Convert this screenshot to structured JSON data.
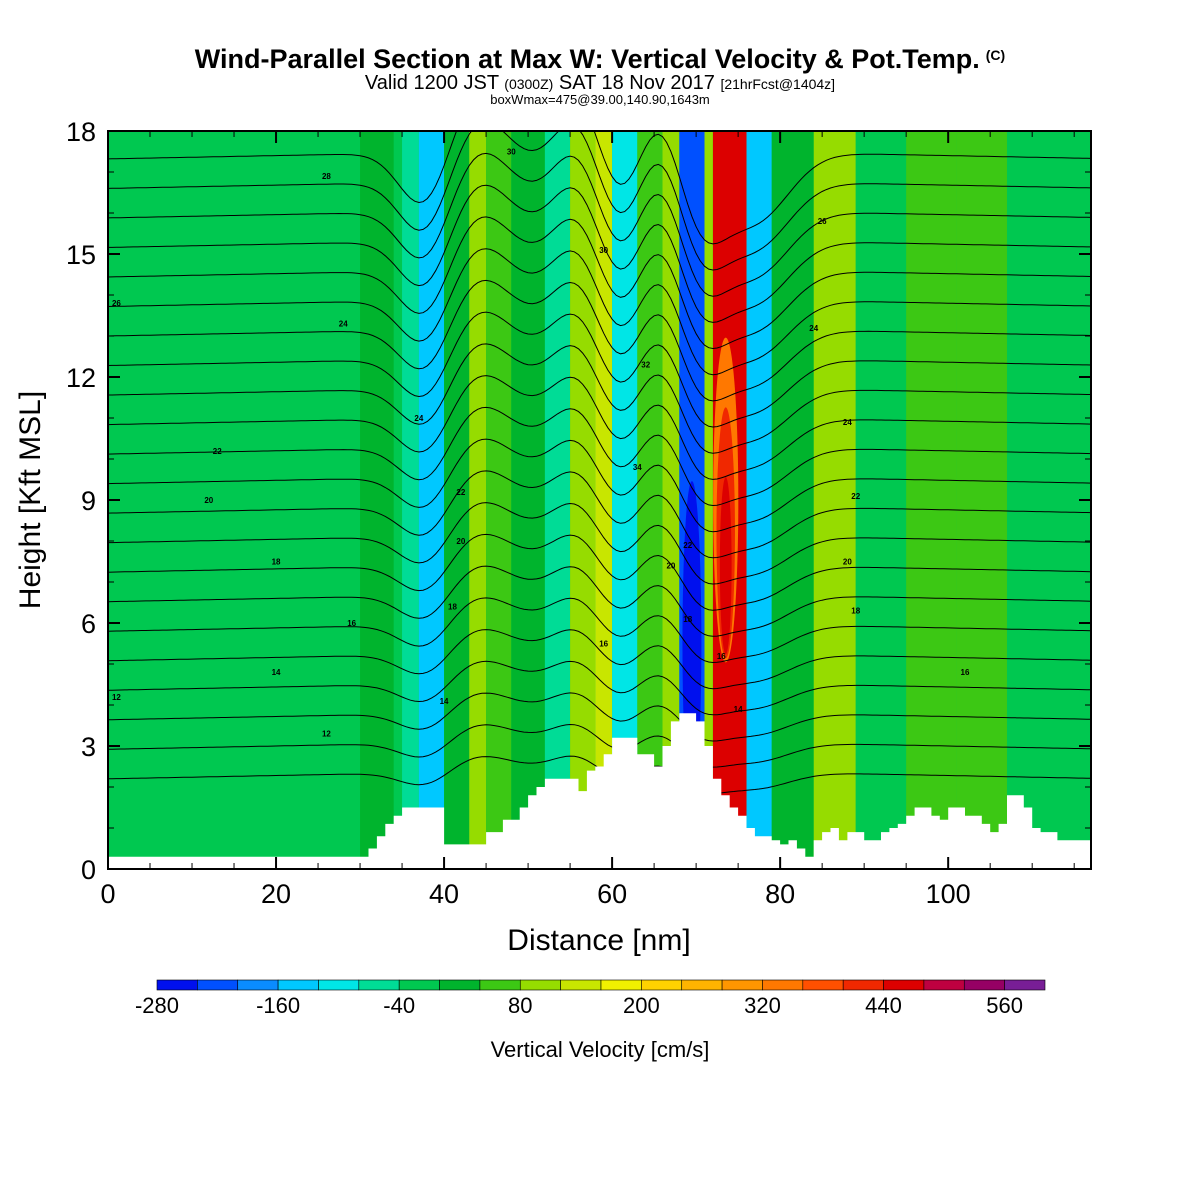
{
  "header": {
    "title": "Wind-Parallel Section at Max W: Vertical Velocity & Pot.Temp.",
    "title_tag": "(C)",
    "valid_prefix": "Valid 1200 JST",
    "valid_utc": "(0300Z)",
    "valid_date": "SAT 18 Nov 2017",
    "forecast_info": "[21hrFcst@1404z]",
    "box_info": "boxWmax=475@39.00,140.90,1643m"
  },
  "chart_data": {
    "type": "heatmap",
    "xlabel": "Distance [nm]",
    "ylabel": "Height [Kft MSL]",
    "xlim": [
      0,
      117
    ],
    "ylim": [
      0,
      18
    ],
    "x_ticks": [
      "0",
      "20",
      "40",
      "60",
      "80",
      "100"
    ],
    "y_ticks": [
      "0",
      "3",
      "6",
      "9",
      "12",
      "15",
      "18"
    ],
    "x_tick_values": [
      0,
      20,
      40,
      60,
      80,
      100
    ],
    "y_tick_values": [
      0,
      3,
      6,
      9,
      12,
      15,
      18
    ],
    "colorbar": {
      "label": "Vertical Velocity [cm/s]",
      "min": -280,
      "max": 600,
      "tick_labels": [
        "-280",
        "-160",
        "-40",
        "80",
        "200",
        "320",
        "440",
        "560"
      ],
      "tick_values": [
        -280,
        -160,
        -40,
        80,
        200,
        320,
        440,
        560
      ],
      "colors": [
        "#0010ee",
        "#0050ff",
        "#0a8cff",
        "#00c8ff",
        "#00e6e6",
        "#00dc96",
        "#00c850",
        "#00b42d",
        "#3cc814",
        "#96dc00",
        "#c8e600",
        "#f0f000",
        "#ffd200",
        "#ffb400",
        "#ff9600",
        "#ff7800",
        "#ff5000",
        "#f02800",
        "#dc0000",
        "#be0040",
        "#960064",
        "#781e96"
      ]
    },
    "vertical_velocity_bands": [
      {
        "x": [
          0,
          30
        ],
        "w": -40
      },
      {
        "x": [
          30,
          34
        ],
        "w": 0
      },
      {
        "x": [
          35,
          37
        ],
        "w": -60
      },
      {
        "x": [
          37,
          40
        ],
        "w": -160
      },
      {
        "x": [
          40,
          43
        ],
        "w": 0
      },
      {
        "x": [
          43,
          45
        ],
        "w": 80
      },
      {
        "x": [
          45,
          48
        ],
        "w": 40
      },
      {
        "x": [
          48,
          52
        ],
        "w": 20
      },
      {
        "x": [
          52,
          55
        ],
        "w": -80
      },
      {
        "x": [
          55,
          58
        ],
        "w": 80
      },
      {
        "x": [
          58,
          60
        ],
        "w": 120
      },
      {
        "x": [
          60,
          63
        ],
        "w": -100
      },
      {
        "x": [
          63,
          66
        ],
        "w": 40
      },
      {
        "x": [
          66,
          68
        ],
        "w": 80
      },
      {
        "x": [
          68,
          71
        ],
        "w": -240
      },
      {
        "x": [
          71,
          72
        ],
        "w": 100
      },
      {
        "x": [
          72,
          76
        ],
        "w": 475
      },
      {
        "x": [
          76,
          79
        ],
        "w": -160
      },
      {
        "x": [
          79,
          84
        ],
        "w": 0
      },
      {
        "x": [
          84,
          89
        ],
        "w": 100
      },
      {
        "x": [
          89,
          95
        ],
        "w": -40
      },
      {
        "x": [
          95,
          101
        ],
        "w": 40
      },
      {
        "x": [
          101,
          107
        ],
        "w": 60
      },
      {
        "x": [
          107,
          117
        ],
        "w": -40
      }
    ],
    "terrain": {
      "x": [
        0,
        31,
        32,
        33,
        34,
        35,
        37,
        39,
        40,
        45,
        47,
        49,
        50,
        51,
        52,
        54,
        56,
        57,
        58,
        59,
        60,
        62,
        63,
        65,
        66,
        67,
        68,
        69,
        70,
        71,
        72,
        73,
        74,
        75,
        76,
        77,
        78,
        79,
        80,
        81,
        82,
        83,
        84,
        85,
        86,
        87,
        88,
        89,
        90,
        92,
        93,
        94,
        95,
        96,
        97,
        98,
        99,
        100,
        102,
        103,
        104,
        105,
        106,
        107,
        108,
        109,
        110,
        111,
        112,
        113,
        114,
        115,
        116,
        117
      ],
      "kft": [
        0.3,
        0.5,
        0.8,
        1.1,
        1.3,
        1.5,
        1.5,
        1.5,
        0.6,
        0.9,
        1.2,
        1.5,
        1.8,
        2.0,
        2.2,
        2.2,
        1.9,
        2.4,
        2.5,
        2.8,
        3.2,
        3.2,
        2.8,
        2.5,
        3.0,
        3.6,
        3.8,
        3.8,
        3.6,
        3.0,
        2.2,
        1.8,
        1.5,
        1.3,
        1.0,
        0.8,
        0.8,
        0.7,
        0.6,
        0.7,
        0.5,
        0.3,
        0.7,
        0.9,
        1.0,
        0.7,
        0.9,
        0.9,
        0.7,
        0.9,
        1.0,
        1.1,
        1.3,
        1.5,
        1.5,
        1.3,
        1.2,
        1.5,
        1.3,
        1.3,
        1.1,
        0.9,
        1.1,
        1.8,
        1.8,
        1.5,
        1.0,
        0.9,
        0.9,
        0.7,
        0.7,
        0.7,
        0.7,
        0.7
      ]
    },
    "theta_contours": [
      {
        "label": "12",
        "label_x": 26,
        "label_y": 3.3,
        "y0": 4.2,
        "wave": 0.2
      },
      {
        "label": "14",
        "label_x": 20,
        "label_y": 4.8,
        "y0": 4.9,
        "wave": 0.4
      },
      {
        "label": "16",
        "label_x": 29,
        "label_y": 6.0,
        "y0": 5.9,
        "wave": 0.6
      },
      {
        "label": "18",
        "label_x": 20,
        "label_y": 7.5,
        "y0": 7.4,
        "wave": 0.9
      },
      {
        "label": "20",
        "label_x": 12,
        "label_y": 9.0,
        "y0": 9.1,
        "wave": 1.1
      },
      {
        "label": "22",
        "label_x": 13,
        "label_y": 10.2,
        "y0": 10.2,
        "wave": 1.2
      },
      {
        "label": "24",
        "label_x": 28,
        "label_y": 13.3,
        "y0": 13.1,
        "wave": 1.3
      },
      {
        "label": "26",
        "label_x": 1,
        "label_y": 13.8,
        "y0": 13.9,
        "wave": 1.4
      },
      {
        "label": "28",
        "label_x": 26,
        "label_y": 16.9,
        "y0": 16.8,
        "wave": 1.5
      },
      {
        "label": "30",
        "label_x": 48,
        "label_y": 17.5,
        "y0": 17.6,
        "wave": 1.5
      }
    ],
    "inline_labels": [
      {
        "label": "12",
        "x": 1,
        "y": 4.2
      },
      {
        "label": "14",
        "x": 40,
        "y": 4.1
      },
      {
        "label": "16",
        "x": 59,
        "y": 5.5
      },
      {
        "label": "18",
        "x": 41,
        "y": 6.4
      },
      {
        "label": "20",
        "x": 42,
        "y": 8.0
      },
      {
        "label": "22",
        "x": 42,
        "y": 9.2
      },
      {
        "label": "24",
        "x": 37,
        "y": 11.0
      },
      {
        "label": "34",
        "x": 63,
        "y": 9.8
      },
      {
        "label": "32",
        "x": 64,
        "y": 12.3
      },
      {
        "label": "30",
        "x": 59,
        "y": 15.1
      },
      {
        "label": "20",
        "x": 67,
        "y": 7.4
      },
      {
        "label": "22",
        "x": 69,
        "y": 7.9
      },
      {
        "label": "18",
        "x": 69,
        "y": 6.1
      },
      {
        "label": "16",
        "x": 73,
        "y": 5.2
      },
      {
        "label": "14",
        "x": 75,
        "y": 3.9
      },
      {
        "label": "26",
        "x": 85,
        "y": 15.8
      },
      {
        "label": "24",
        "x": 84,
        "y": 13.2
      },
      {
        "label": "24",
        "x": 88,
        "y": 10.9
      },
      {
        "label": "22",
        "x": 89,
        "y": 9.1
      },
      {
        "label": "20",
        "x": 88,
        "y": 7.5
      },
      {
        "label": "18",
        "x": 89,
        "y": 6.3
      },
      {
        "label": "16",
        "x": 102,
        "y": 4.8
      }
    ]
  }
}
